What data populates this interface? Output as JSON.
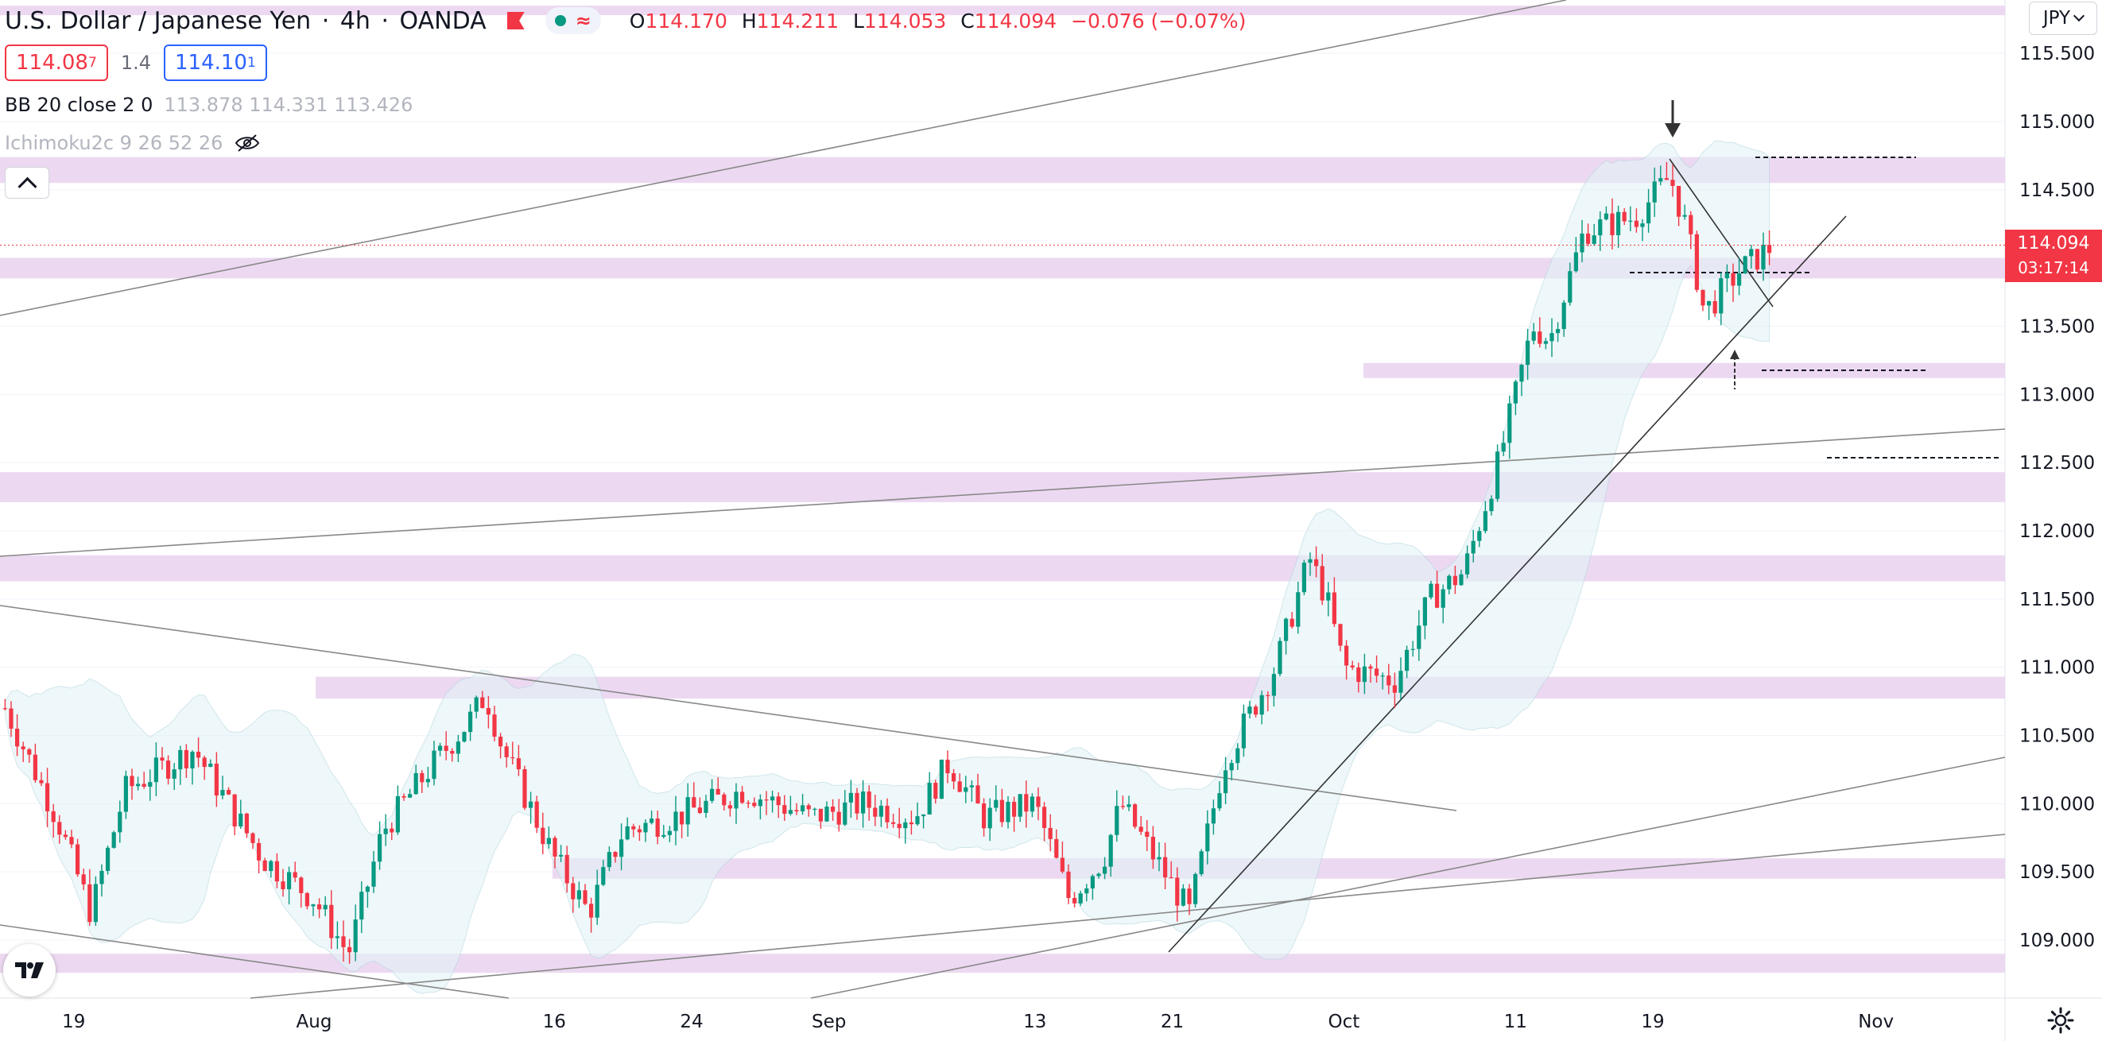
{
  "header": {
    "symbol_name": "U.S. Dollar / Japanese Yen",
    "interval": "4h",
    "broker": "OANDA",
    "ohlc": {
      "o_label": "O",
      "o_value": "114.170",
      "h_label": "H",
      "h_value": "114.211",
      "l_label": "L",
      "l_value": "114.053",
      "c_label": "C",
      "c_value": "114.094",
      "change": "−0.076 (−0.07%)"
    }
  },
  "trade": {
    "sell_price_main": "114.08",
    "sell_price_pip": "7",
    "spread": "1.4",
    "buy_price_main": "114.10",
    "buy_price_pip": "1"
  },
  "indicators": [
    {
      "name": "BB 20 close 2 0",
      "values": "113.878  114.331  113.426"
    },
    {
      "name": "Ichimoku2c 9 26 52 26"
    }
  ],
  "price_scale": {
    "currency": "JPY",
    "last_price": "114.094",
    "countdown": "03:17:14"
  },
  "colors": {
    "up": "#089981",
    "down": "#f23645",
    "zone": "#e9d2ee",
    "bb": "#b2d7e0",
    "trendline": "#888888",
    "accent": "#2962ff"
  },
  "chart_data": {
    "type": "candlestick",
    "y_ticks": [
      "115.500",
      "115.000",
      "114.500",
      "114.000",
      "113.500",
      "113.000",
      "112.500",
      "112.000",
      "111.500",
      "111.000",
      "110.500",
      "110.000",
      "109.500",
      "109.000"
    ],
    "ylim": [
      108.75,
      115.85
    ],
    "x_ticks": [
      {
        "label": "19",
        "date": "2021-07-19"
      },
      {
        "label": "Aug",
        "date": "2021-08-02"
      },
      {
        "label": "16",
        "date": "2021-08-16"
      },
      {
        "label": "24",
        "date": "2021-08-24"
      },
      {
        "label": "Sep",
        "date": "2021-09-01"
      },
      {
        "label": "13",
        "date": "2021-09-13"
      },
      {
        "label": "21",
        "date": "2021-09-21"
      },
      {
        "label": "Oct",
        "date": "2021-10-01"
      },
      {
        "label": "11",
        "date": "2021-10-11"
      },
      {
        "label": "19",
        "date": "2021-10-19"
      },
      {
        "label": "Nov",
        "date": "2021-11-01"
      }
    ],
    "close_path": [
      [
        "2021-07-15",
        110.7
      ],
      [
        "2021-07-18",
        109.9
      ],
      [
        "2021-07-20",
        109.2
      ],
      [
        "2021-07-22",
        110.1
      ],
      [
        "2021-07-26",
        110.4
      ],
      [
        "2021-07-28",
        110.0
      ],
      [
        "2021-07-30",
        109.6
      ],
      [
        "2021-08-02",
        109.3
      ],
      [
        "2021-08-04",
        108.9
      ],
      [
        "2021-08-06",
        109.8
      ],
      [
        "2021-08-09",
        110.3
      ],
      [
        "2021-08-11",
        110.6
      ],
      [
        "2021-08-12",
        110.8
      ],
      [
        "2021-08-13",
        110.4
      ],
      [
        "2021-08-16",
        109.6
      ],
      [
        "2021-08-18",
        109.2
      ],
      [
        "2021-08-20",
        109.8
      ],
      [
        "2021-08-23",
        109.9
      ],
      [
        "2021-08-25",
        110.0
      ],
      [
        "2021-08-27",
        110.1
      ],
      [
        "2021-08-31",
        109.9
      ],
      [
        "2021-09-03",
        110.0
      ],
      [
        "2021-09-06",
        109.9
      ],
      [
        "2021-09-08",
        110.3
      ],
      [
        "2021-09-10",
        109.9
      ],
      [
        "2021-09-13",
        110.0
      ],
      [
        "2021-09-15",
        109.3
      ],
      [
        "2021-09-17",
        109.6
      ],
      [
        "2021-09-18",
        110.0
      ],
      [
        "2021-09-21",
        109.4
      ],
      [
        "2021-09-22",
        109.2
      ],
      [
        "2021-09-24",
        110.3
      ],
      [
        "2021-09-27",
        111.0
      ],
      [
        "2021-09-29",
        111.8
      ],
      [
        "2021-09-30",
        111.5
      ],
      [
        "2021-10-01",
        111.0
      ],
      [
        "2021-10-04",
        110.9
      ],
      [
        "2021-10-06",
        111.5
      ],
      [
        "2021-10-08",
        111.7
      ],
      [
        "2021-10-10",
        112.5
      ],
      [
        "2021-10-12",
        113.5
      ],
      [
        "2021-10-13",
        113.4
      ],
      [
        "2021-10-15",
        114.2
      ],
      [
        "2021-10-18",
        114.3
      ],
      [
        "2021-10-20",
        114.6
      ],
      [
        "2021-10-21",
        114.2
      ],
      [
        "2021-10-22",
        113.6
      ],
      [
        "2021-10-24",
        113.9
      ],
      [
        "2021-10-26",
        114.09
      ]
    ]
  }
}
